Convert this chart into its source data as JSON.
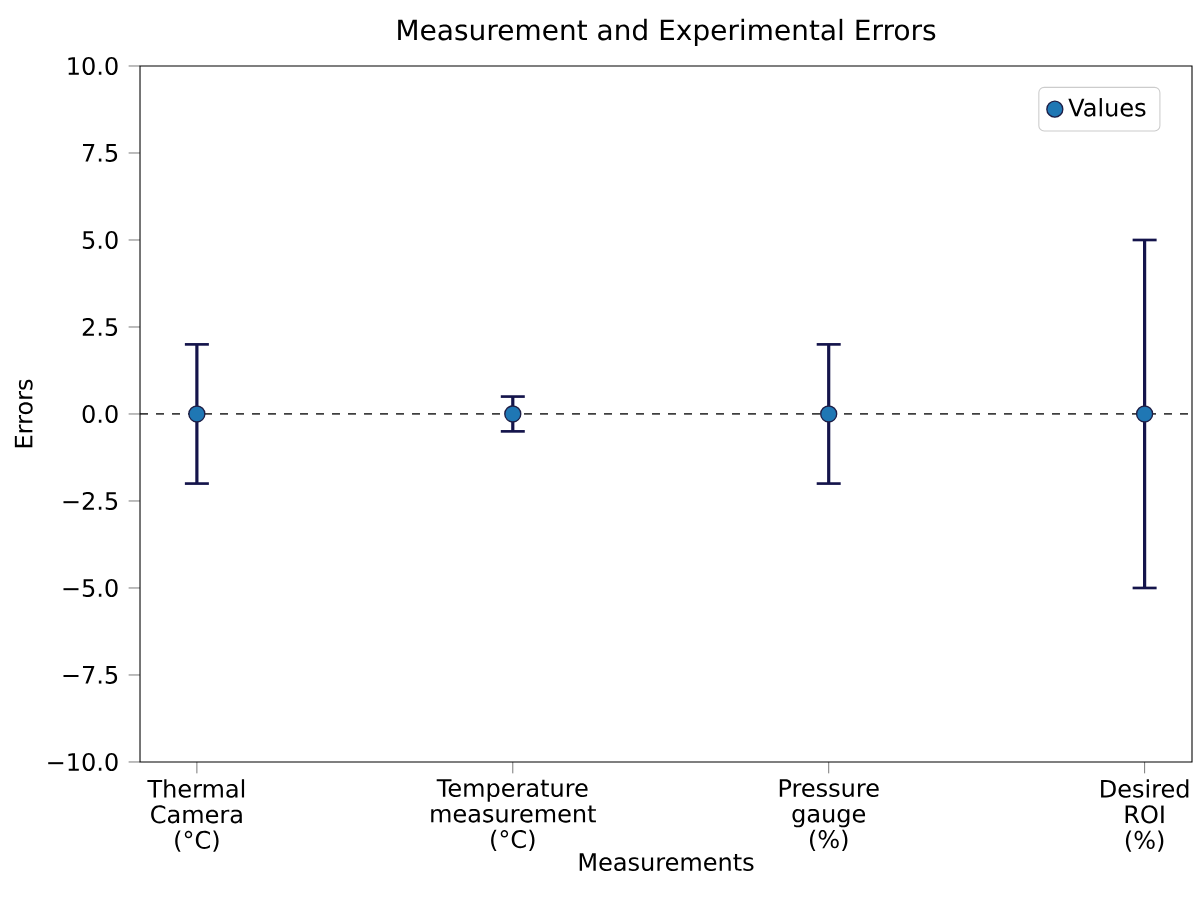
{
  "chart_data": {
    "type": "scatter",
    "title": "Measurement and Experimental Errors",
    "xlabel": "Measurements",
    "ylabel": "Errors",
    "categories": [
      "Thermal Camera (°C)",
      "Temperature measurement (°C)",
      "Pressure gauge (%)",
      "Desired ROI (%)"
    ],
    "series": [
      {
        "name": "Values",
        "color": "#1f77b4",
        "values": [
          0,
          0,
          0,
          0
        ],
        "errors": [
          2,
          0.5,
          2,
          5
        ]
      }
    ],
    "ylim": [
      -10,
      10
    ],
    "yticks": [
      {
        "value": -10,
        "label": "−10.0"
      },
      {
        "value": -7.5,
        "label": "−7.5"
      },
      {
        "value": -5,
        "label": "−5.0"
      },
      {
        "value": -2.5,
        "label": "−2.5"
      },
      {
        "value": 0,
        "label": "0.0"
      },
      {
        "value": 2.5,
        "label": "2.5"
      },
      {
        "value": 5,
        "label": "5.0"
      },
      {
        "value": 7.5,
        "label": "7.5"
      },
      {
        "value": 10,
        "label": "10.0"
      }
    ],
    "ref_lines": [
      {
        "axis": "y",
        "value": 0,
        "color": "#000000",
        "line_style": "dashed"
      }
    ],
    "legend": "top right",
    "marker": "circle",
    "grid": false
  }
}
